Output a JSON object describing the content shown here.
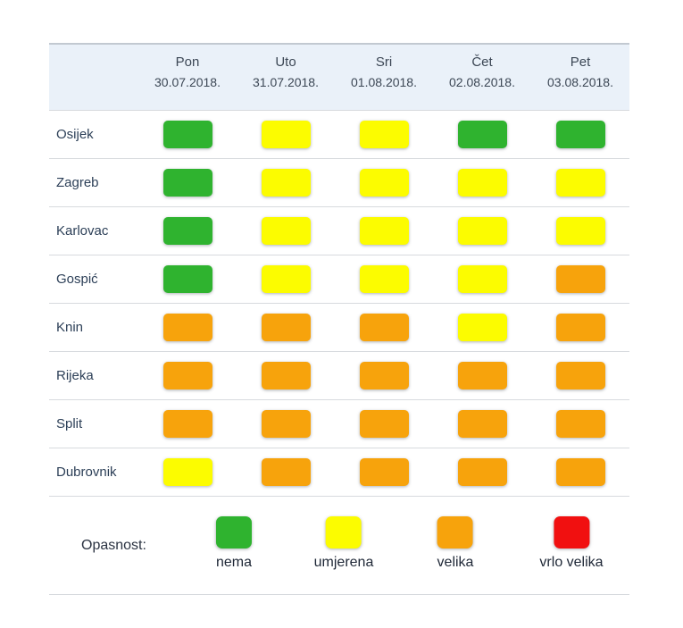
{
  "header": {
    "columns": [
      {
        "day": "Pon",
        "date": "30.07.2018."
      },
      {
        "day": "Uto",
        "date": "31.07.2018."
      },
      {
        "day": "Sri",
        "date": "01.08.2018."
      },
      {
        "day": "Čet",
        "date": "02.08.2018."
      },
      {
        "day": "Pet",
        "date": "03.08.2018."
      }
    ]
  },
  "rows": [
    {
      "city": "Osijek",
      "levels": [
        "nema",
        "umjerena",
        "umjerena",
        "nema",
        "nema"
      ]
    },
    {
      "city": "Zagreb",
      "levels": [
        "nema",
        "umjerena",
        "umjerena",
        "umjerena",
        "umjerena"
      ]
    },
    {
      "city": "Karlovac",
      "levels": [
        "nema",
        "umjerena",
        "umjerena",
        "umjerena",
        "umjerena"
      ]
    },
    {
      "city": "Gospić",
      "levels": [
        "nema",
        "umjerena",
        "umjerena",
        "umjerena",
        "velika"
      ]
    },
    {
      "city": "Knin",
      "levels": [
        "velika",
        "velika",
        "velika",
        "umjerena",
        "velika"
      ]
    },
    {
      "city": "Rijeka",
      "levels": [
        "velika",
        "velika",
        "velika",
        "velika",
        "velika"
      ]
    },
    {
      "city": "Split",
      "levels": [
        "velika",
        "velika",
        "velika",
        "velika",
        "velika"
      ]
    },
    {
      "city": "Dubrovnik",
      "levels": [
        "umjerena",
        "velika",
        "velika",
        "velika",
        "velika"
      ]
    }
  ],
  "legend": {
    "label": "Opasnost:",
    "items": [
      {
        "level": "nema",
        "label": "nema"
      },
      {
        "level": "umjerena",
        "label": "umjerena"
      },
      {
        "level": "velika",
        "label": "velika"
      },
      {
        "level": "vrlo_velika",
        "label": "vrlo velika"
      }
    ]
  },
  "colors": {
    "levels": {
      "nema": "#2fb32f",
      "umjerena": "#fcfc00",
      "velika": "#f7a30c",
      "vrlo_velika": "#f11010"
    },
    "header_bg": "#eaf1f9",
    "border_top": "#c2c9d1",
    "separator": "#d7dade"
  },
  "chart_data": {
    "type": "heatmap",
    "title": "",
    "x": [
      "Pon 30.07.2018.",
      "Uto 31.07.2018.",
      "Sri 01.08.2018.",
      "Čet 02.08.2018.",
      "Pet 03.08.2018."
    ],
    "y": [
      "Osijek",
      "Zagreb",
      "Karlovac",
      "Gospić",
      "Knin",
      "Rijeka",
      "Split",
      "Dubrovnik"
    ],
    "values": [
      [
        "nema",
        "umjerena",
        "umjerena",
        "nema",
        "nema"
      ],
      [
        "nema",
        "umjerena",
        "umjerena",
        "umjerena",
        "umjerena"
      ],
      [
        "nema",
        "umjerena",
        "umjerena",
        "umjerena",
        "umjerena"
      ],
      [
        "nema",
        "umjerena",
        "umjerena",
        "umjerena",
        "velika"
      ],
      [
        "velika",
        "velika",
        "velika",
        "umjerena",
        "velika"
      ],
      [
        "velika",
        "velika",
        "velika",
        "velika",
        "velika"
      ],
      [
        "velika",
        "velika",
        "velika",
        "velika",
        "velika"
      ],
      [
        "umjerena",
        "velika",
        "velika",
        "velika",
        "velika"
      ]
    ],
    "levels": [
      "nema",
      "umjerena",
      "velika",
      "vrlo velika"
    ],
    "level_colors": {
      "nema": "#2fb32f",
      "umjerena": "#fcfc00",
      "velika": "#f7a30c",
      "vrlo velika": "#f11010"
    },
    "legend_title": "Opasnost:",
    "legend_position": "bottom",
    "grid": "horizontal-separators-only"
  }
}
